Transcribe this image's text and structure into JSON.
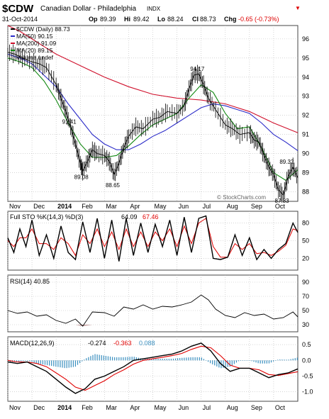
{
  "header": {
    "symbol": "$CDW",
    "name": "Canadian Dollar - Philadelphia",
    "exchange": "INDX",
    "date": "31-Oct-2014",
    "open_label": "Op",
    "open": "89.39",
    "high_label": "Hi",
    "high": "89.42",
    "low_label": "Lo",
    "low": "88.24",
    "close_label": "Cl",
    "close": "88.73",
    "change_label": "Chg",
    "change": "-0.65 (-0.73%)",
    "change_arrow": "down-arrow-icon",
    "copyright": "© StockCharts.com"
  },
  "colors": {
    "price": "#000000",
    "ma50": "#2b2bc8",
    "ma200": "#d0102c",
    "ma20": "#118811",
    "sto_d": "#e00000",
    "macd_signal": "#e00000",
    "hist": "#3a8fbf",
    "rsi_fill_low": "#c09a9a",
    "grid": "#bbbbbb"
  },
  "chart_data": [
    {
      "panel": "price",
      "type": "line",
      "legend": [
        {
          "label": "$CDW (Daily) 88.73",
          "color": "#000000"
        },
        {
          "label": "MA(50) 90.15",
          "color": "#2b2bc8"
        },
        {
          "label": "MA(200) 91.09",
          "color": "#d0102c"
        },
        {
          "label": "MA(20) 89.15",
          "color": "#118811"
        },
        {
          "label": "Volume undef",
          "color": "#aaaaaa"
        }
      ],
      "ylim": [
        87.5,
        96.7
      ],
      "yticks": [
        88,
        89,
        90,
        91,
        92,
        93,
        94,
        95,
        96
      ],
      "x_labels": [
        "Nov",
        "Dec",
        "2014",
        "Feb",
        "Mar",
        "Apr",
        "May",
        "Jun",
        "Jul",
        "Aug",
        "Sep",
        "Oct"
      ],
      "x_positions": [
        0,
        1,
        2,
        3,
        4,
        5,
        6,
        7,
        8,
        9,
        10,
        11
      ],
      "xlim": [
        0,
        12
      ],
      "series": [
        {
          "key": "price",
          "x": [
            0.0,
            0.3,
            0.6,
            1.0,
            1.3,
            1.6,
            2.0,
            2.2,
            2.4,
            2.6,
            2.8,
            3.0,
            3.1,
            3.3,
            3.5,
            3.7,
            4.0,
            4.2,
            4.4,
            4.6,
            4.8,
            5.0,
            5.3,
            5.6,
            6.0,
            6.3,
            6.6,
            7.0,
            7.3,
            7.5,
            7.7,
            7.9,
            8.1,
            8.3,
            8.6,
            9.0,
            9.3,
            9.6,
            10.0,
            10.2,
            10.4,
            10.6,
            10.8,
            11.0,
            11.2,
            11.4,
            11.6,
            11.8,
            12.0
          ],
          "values": [
            95.3,
            95.2,
            95.0,
            94.8,
            94.7,
            94.5,
            93.6,
            92.9,
            92.2,
            91.4,
            90.5,
            89.5,
            89.08,
            89.6,
            90.2,
            90.0,
            89.9,
            89.6,
            88.9,
            89.5,
            90.3,
            90.9,
            91.4,
            91.3,
            91.8,
            91.9,
            92.2,
            92.1,
            92.5,
            93.4,
            94.1,
            94.17,
            93.6,
            92.9,
            92.3,
            91.5,
            91.3,
            91.0,
            91.1,
            90.7,
            90.6,
            89.9,
            89.3,
            88.9,
            88.1,
            87.83,
            88.8,
            89.3,
            88.73
          ]
        },
        {
          "key": "ma50",
          "x": [
            0.0,
            0.5,
            1.0,
            1.5,
            2.0,
            2.5,
            3.0,
            3.5,
            4.0,
            4.5,
            5.0,
            5.5,
            6.0,
            6.5,
            7.0,
            7.5,
            8.0,
            8.5,
            9.0,
            9.5,
            10.0,
            10.5,
            11.0,
            11.5,
            12.0
          ],
          "values": [
            95.2,
            95.0,
            94.7,
            94.1,
            93.5,
            92.6,
            91.8,
            91.0,
            90.5,
            90.2,
            90.2,
            90.5,
            90.9,
            91.2,
            91.6,
            92.0,
            92.4,
            92.6,
            92.5,
            92.3,
            92.1,
            91.6,
            91.0,
            90.6,
            90.15
          ]
        },
        {
          "key": "ma200",
          "x": [
            0.0,
            0.5,
            1.0,
            1.5,
            2.0,
            3.0,
            4.0,
            5.0,
            6.0,
            7.0,
            8.0,
            9.0,
            10.0,
            11.0,
            12.0
          ],
          "values": [
            96.7,
            96.4,
            96.0,
            95.6,
            95.2,
            94.6,
            94.0,
            93.5,
            93.1,
            92.9,
            92.8,
            92.6,
            92.2,
            91.6,
            91.09
          ]
        },
        {
          "key": "ma20",
          "x": [
            0.0,
            0.5,
            1.0,
            1.5,
            2.0,
            2.5,
            3.0,
            3.5,
            4.0,
            4.5,
            5.0,
            5.5,
            6.0,
            6.5,
            7.0,
            7.5,
            8.0,
            8.5,
            9.0,
            9.5,
            10.0,
            10.5,
            11.0,
            11.5,
            12.0
          ],
          "values": [
            95.0,
            94.8,
            94.5,
            93.8,
            92.8,
            91.6,
            90.5,
            89.8,
            89.8,
            89.9,
            90.4,
            91.0,
            91.5,
            91.8,
            92.1,
            92.9,
            93.6,
            93.2,
            92.1,
            91.3,
            91.4,
            90.3,
            89.0,
            88.6,
            89.15
          ]
        }
      ],
      "annotations": [
        {
          "text": "91.41",
          "x": 2.6,
          "y": 91.41
        },
        {
          "text": "89.08",
          "x": 3.1,
          "y": 89.08
        },
        {
          "text": "88.65",
          "x": 4.4,
          "y": 88.65
        },
        {
          "text": "94.17",
          "x": 7.9,
          "y": 94.17
        },
        {
          "text": "89.32",
          "x": 11.6,
          "y": 89.32
        },
        {
          "text": "87.83",
          "x": 11.4,
          "y": 87.83
        }
      ]
    },
    {
      "panel": "sto",
      "type": "line",
      "legend_title": "Full STO %K(14,3) %D(3)",
      "legend_k": "64.09",
      "legend_d": "67.46",
      "ylim": [
        0,
        100
      ],
      "yticks": [
        20,
        50,
        80
      ],
      "series": [
        {
          "key": "k",
          "x": [
            0.0,
            0.25,
            0.5,
            0.75,
            1.0,
            1.3,
            1.6,
            1.9,
            2.2,
            2.5,
            2.8,
            3.1,
            3.4,
            3.7,
            4.0,
            4.3,
            4.6,
            4.9,
            5.2,
            5.5,
            5.8,
            6.1,
            6.4,
            6.7,
            7.0,
            7.3,
            7.6,
            7.9,
            8.2,
            8.5,
            8.8,
            9.1,
            9.4,
            9.7,
            10.0,
            10.3,
            10.6,
            10.9,
            11.2,
            11.5,
            11.8,
            12.0
          ],
          "values": [
            55,
            30,
            70,
            40,
            85,
            25,
            60,
            20,
            75,
            30,
            18,
            82,
            30,
            88,
            20,
            85,
            15,
            88,
            25,
            80,
            30,
            78,
            40,
            85,
            25,
            90,
            30,
            88,
            92,
            20,
            18,
            22,
            60,
            25,
            55,
            18,
            35,
            20,
            35,
            45,
            80,
            64
          ]
        },
        {
          "key": "d",
          "x": [
            0.0,
            0.25,
            0.5,
            0.75,
            1.0,
            1.3,
            1.6,
            1.9,
            2.2,
            2.5,
            2.8,
            3.1,
            3.4,
            3.7,
            4.0,
            4.3,
            4.6,
            4.9,
            5.2,
            5.5,
            5.8,
            6.1,
            6.4,
            6.7,
            7.0,
            7.3,
            7.6,
            7.9,
            8.2,
            8.5,
            8.8,
            9.1,
            9.4,
            9.7,
            10.0,
            10.3,
            10.6,
            10.9,
            11.2,
            11.5,
            11.8,
            12.0
          ],
          "values": [
            50,
            40,
            55,
            55,
            70,
            45,
            45,
            35,
            55,
            45,
            25,
            60,
            45,
            70,
            40,
            65,
            35,
            70,
            40,
            65,
            40,
            65,
            50,
            70,
            40,
            75,
            45,
            80,
            88,
            40,
            22,
            22,
            45,
            35,
            45,
            28,
            30,
            25,
            32,
            42,
            70,
            67
          ]
        }
      ]
    },
    {
      "panel": "rsi",
      "type": "line",
      "legend": "RSI(14) 40.85",
      "ylim": [
        20,
        100
      ],
      "yticks": [
        30,
        50,
        70,
        90
      ],
      "series": [
        {
          "key": "rsi",
          "x": [
            0.0,
            0.4,
            0.8,
            1.2,
            1.6,
            2.0,
            2.4,
            2.8,
            3.1,
            3.5,
            4.0,
            4.4,
            4.8,
            5.2,
            5.6,
            6.0,
            6.4,
            6.8,
            7.2,
            7.6,
            8.0,
            8.3,
            8.6,
            9.0,
            9.4,
            9.8,
            10.2,
            10.6,
            11.0,
            11.4,
            11.8,
            12.0
          ],
          "values": [
            50,
            46,
            48,
            42,
            44,
            36,
            32,
            38,
            28,
            48,
            47,
            42,
            55,
            52,
            58,
            52,
            56,
            55,
            58,
            62,
            72,
            65,
            52,
            43,
            40,
            47,
            43,
            45,
            38,
            40,
            48,
            41
          ]
        }
      ]
    },
    {
      "panel": "macd",
      "type": "line",
      "legend_title": "MACD(12,26,9)",
      "legend_macd": "-0.274",
      "legend_signal": "-0.363",
      "legend_hist": "0.088",
      "ylim": [
        -1.3,
        0.75
      ],
      "yticks": [
        -1.0,
        -0.5,
        0.0,
        0.5
      ],
      "series": [
        {
          "key": "macd",
          "x": [
            0.0,
            0.4,
            0.8,
            1.2,
            1.6,
            2.0,
            2.4,
            2.8,
            3.2,
            3.6,
            4.0,
            4.4,
            4.8,
            5.2,
            5.6,
            6.0,
            6.4,
            6.8,
            7.2,
            7.6,
            8.0,
            8.4,
            8.8,
            9.2,
            9.6,
            10.0,
            10.4,
            10.8,
            11.2,
            11.6,
            12.0
          ],
          "values": [
            -0.05,
            -0.1,
            -0.05,
            -0.2,
            -0.35,
            -0.6,
            -0.85,
            -1.05,
            -0.9,
            -0.6,
            -0.5,
            -0.35,
            -0.2,
            0.0,
            0.05,
            0.1,
            0.15,
            0.2,
            0.3,
            0.45,
            0.55,
            0.3,
            -0.1,
            -0.35,
            -0.25,
            -0.25,
            -0.4,
            -0.55,
            -0.45,
            -0.4,
            -0.27
          ]
        },
        {
          "key": "signal",
          "x": [
            0.0,
            0.4,
            0.8,
            1.2,
            1.6,
            2.0,
            2.4,
            2.8,
            3.2,
            3.6,
            4.0,
            4.4,
            4.8,
            5.2,
            5.6,
            6.0,
            6.4,
            6.8,
            7.2,
            7.6,
            8.0,
            8.4,
            8.8,
            9.2,
            9.6,
            10.0,
            10.4,
            10.8,
            11.2,
            11.6,
            12.0
          ],
          "values": [
            0.0,
            -0.05,
            -0.05,
            -0.1,
            -0.2,
            -0.4,
            -0.6,
            -0.85,
            -0.95,
            -0.8,
            -0.65,
            -0.45,
            -0.3,
            -0.12,
            0.0,
            0.05,
            0.1,
            0.15,
            0.22,
            0.35,
            0.45,
            0.4,
            0.15,
            -0.15,
            -0.25,
            -0.25,
            -0.3,
            -0.45,
            -0.48,
            -0.42,
            -0.36
          ]
        }
      ]
    }
  ]
}
